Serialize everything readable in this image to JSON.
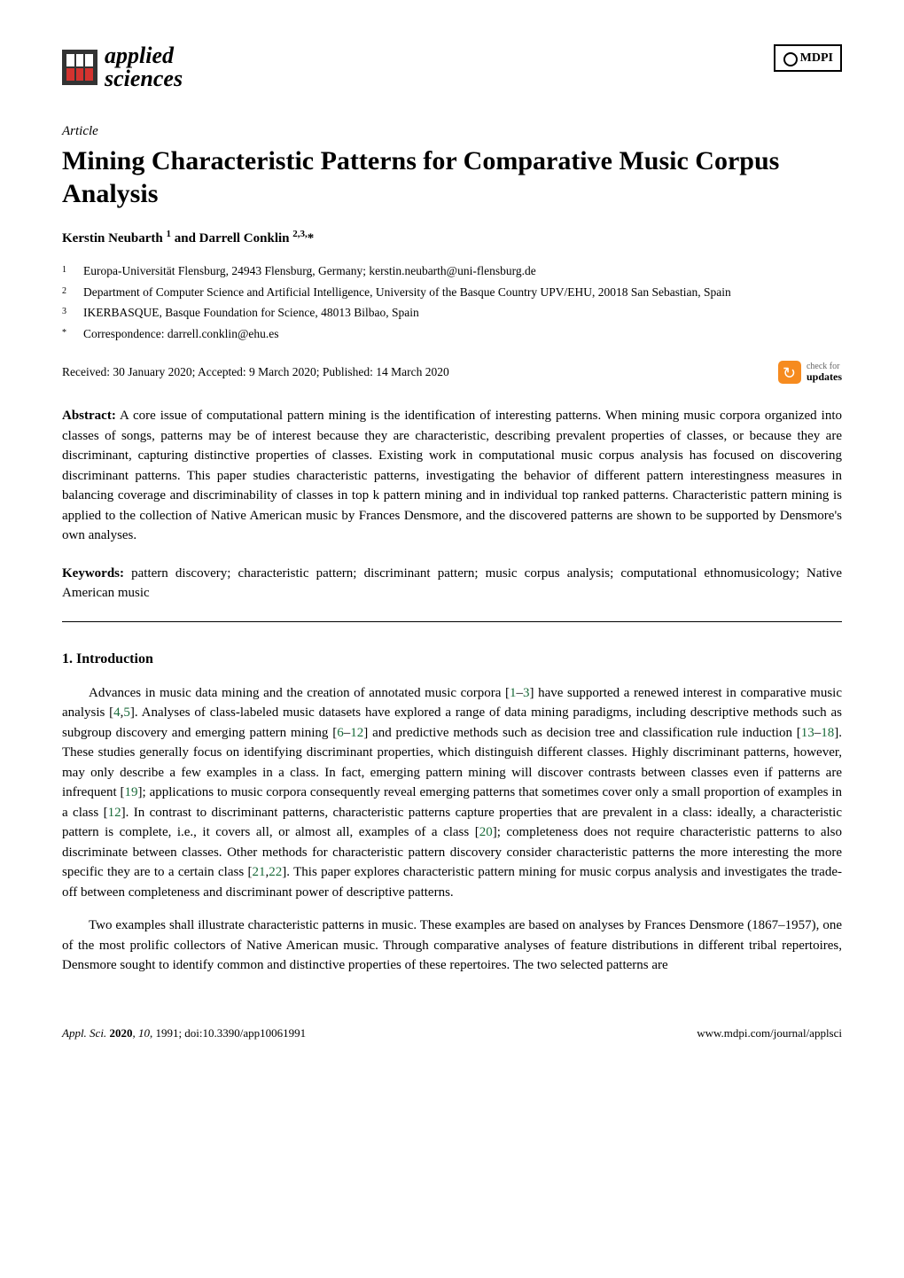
{
  "header": {
    "journal_name_line1": "applied",
    "journal_name_line2": "sciences",
    "publisher_logo": "MDPI"
  },
  "article": {
    "type": "Article",
    "title": "Mining Characteristic Patterns for Comparative Music Corpus Analysis",
    "authors_text": "Kerstin Neubarth ",
    "author1_sup": "1",
    "authors_and": " and Darrell Conklin ",
    "author2_sup": "2,3,",
    "author2_star": "*"
  },
  "affiliations": [
    {
      "num": "1",
      "text": "Europa-Universität Flensburg, 24943 Flensburg, Germany; kerstin.neubarth@uni-flensburg.de"
    },
    {
      "num": "2",
      "text": "Department of Computer Science and Artificial Intelligence, University of the Basque Country UPV/EHU, 20018 San Sebastian, Spain"
    },
    {
      "num": "3",
      "text": "IKERBASQUE, Basque Foundation for Science, 48013 Bilbao, Spain"
    },
    {
      "num": "*",
      "text": "Correspondence: darrell.conklin@ehu.es"
    }
  ],
  "dates": "Received: 30 January 2020; Accepted: 9 March 2020; Published: 14 March 2020",
  "check_updates": {
    "line1": "check for",
    "line2": "updates"
  },
  "abstract": {
    "label": "Abstract:",
    "text": " A core issue of computational pattern mining is the identification of interesting patterns. When mining music corpora organized into classes of songs, patterns may be of interest because they are characteristic, describing prevalent properties of classes, or because they are discriminant, capturing distinctive properties of classes. Existing work in computational music corpus analysis has focused on discovering discriminant patterns. This paper studies characteristic patterns, investigating the behavior of different pattern interestingness measures in balancing coverage and discriminability of classes in top k pattern mining and in individual top ranked patterns. Characteristic pattern mining is applied to the collection of Native American music by Frances Densmore, and the discovered patterns are shown to be supported by Densmore's own analyses."
  },
  "keywords": {
    "label": "Keywords:",
    "text": " pattern discovery; characteristic pattern; discriminant pattern; music corpus analysis; computational ethnomusicology; Native American music"
  },
  "section1": {
    "heading": "1. Introduction",
    "para1_a": "Advances in music data mining and the creation of annotated music corpora [",
    "ref1": "1",
    "para1_b": "–",
    "ref2": "3",
    "para1_c": "] have supported a renewed interest in comparative music analysis [",
    "ref3": "4",
    "para1_d": ",",
    "ref4": "5",
    "para1_e": "]. Analyses of class-labeled music datasets have explored a range of data mining paradigms, including descriptive methods such as subgroup discovery and emerging pattern mining [",
    "ref5": "6",
    "para1_f": "–",
    "ref6": "12",
    "para1_g": "] and predictive methods such as decision tree and classification rule induction [",
    "ref7": "13",
    "para1_h": "–",
    "ref8": "18",
    "para1_i": "]. These studies generally focus on identifying discriminant properties, which distinguish different classes. Highly discriminant patterns, however, may only describe a few examples in a class. In fact, emerging pattern mining will discover contrasts between classes even if patterns are infrequent [",
    "ref9": "19",
    "para1_j": "]; applications to music corpora consequently reveal emerging patterns that sometimes cover only a small proportion of examples in a class [",
    "ref10": "12",
    "para1_k": "]. In contrast to discriminant patterns, characteristic patterns capture properties that are prevalent in a class: ideally, a characteristic pattern is complete, i.e., it covers all, or almost all, examples of a class [",
    "ref11": "20",
    "para1_l": "]; completeness does not require characteristic patterns to also discriminate between classes. Other methods for characteristic pattern discovery consider characteristic patterns the more interesting the more specific they are to a certain class [",
    "ref12": "21",
    "para1_m": ",",
    "ref13": "22",
    "para1_n": "]. This paper explores characteristic pattern mining for music corpus analysis and investigates the trade-off between completeness and discriminant power of descriptive patterns.",
    "para2": "Two examples shall illustrate characteristic patterns in music. These examples are based on analyses by Frances Densmore (1867–1957), one of the most prolific collectors of Native American music. Through comparative analyses of feature distributions in different tribal repertoires, Densmore sought to identify common and distinctive properties of these repertoires. The two selected patterns are"
  },
  "footer": {
    "journal": "Appl. Sci.",
    "year": "2020",
    "volume": "10",
    "article_num": ", 1991; doi:10.3390/app10061991",
    "url": "www.mdpi.com/journal/applsci"
  },
  "colors": {
    "ref_link": "#1a6b3a",
    "logo_red": "#d4332f",
    "check_orange": "#f68b1f"
  }
}
